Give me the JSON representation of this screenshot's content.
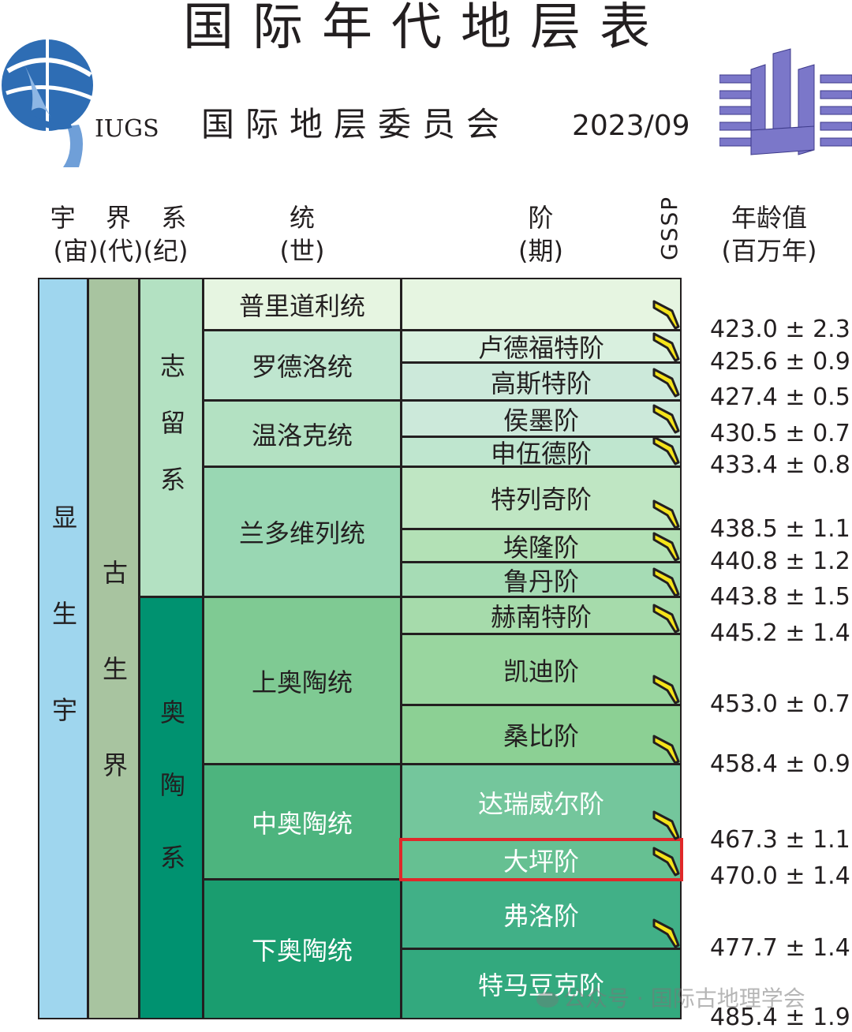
{
  "header": {
    "title": "国际年代地层表",
    "subtitle": "国际地层委员会",
    "date": "2023/09",
    "logo_left_text": "IUGS"
  },
  "columns": {
    "eon_line1": "宇  界  系",
    "eon_line2": "(宙)(代)(纪)",
    "series_line1": "统",
    "series_line2": "(世)",
    "stage_line1": "阶",
    "stage_line2": "(期)",
    "gssp": "GSSP",
    "age_line1": "年龄值",
    "age_line2": "(百万年)"
  },
  "eon": "显生宇",
  "era": "古生界",
  "systems": [
    {
      "name": "志留系"
    },
    {
      "name": "奥陶系"
    }
  ],
  "series": [
    {
      "name": "普里道利统"
    },
    {
      "name": "罗德洛统"
    },
    {
      "name": "温洛克统"
    },
    {
      "name": "兰多维列统"
    },
    {
      "name": "上奥陶统"
    },
    {
      "name": "中奥陶统"
    },
    {
      "name": "下奥陶统"
    }
  ],
  "stages": [
    {
      "name": ""
    },
    {
      "name": "卢德福特阶"
    },
    {
      "name": "高斯特阶"
    },
    {
      "name": "侯墨阶"
    },
    {
      "name": "申伍德阶"
    },
    {
      "name": "特列奇阶"
    },
    {
      "name": "埃隆阶"
    },
    {
      "name": "鲁丹阶"
    },
    {
      "name": "赫南特阶"
    },
    {
      "name": "凯迪阶"
    },
    {
      "name": "桑比阶"
    },
    {
      "name": "达瑞威尔阶"
    },
    {
      "name": "大坪阶"
    },
    {
      "name": "弗洛阶"
    },
    {
      "name": "特马豆克阶"
    }
  ],
  "ages": [
    "423.0 ± 2.3",
    "425.6 ± 0.9",
    "427.4 ± 0.5",
    "430.5 ± 0.7",
    "433.4 ± 0.8",
    "438.5 ± 1.1",
    "440.8 ± 1.2",
    "443.8 ± 1.5",
    "445.2 ± 1.4",
    "453.0 ± 0.7",
    "458.4 ± 0.9",
    "467.3 ± 1.1",
    "470.0 ± 1.4",
    "477.7 ± 1.4",
    "485.4 ± 1.9"
  ],
  "highlighted_stage": "大坪阶",
  "watermark": "公众号 · 国际古地理学会",
  "colors": {
    "eon": "#9fd6ee",
    "era": "#a8c4a0",
    "silurian": "#b3e1c2",
    "ordovician": "#009270",
    "highlight": "#e0282a",
    "gssp_spike": "#f5e31a"
  }
}
